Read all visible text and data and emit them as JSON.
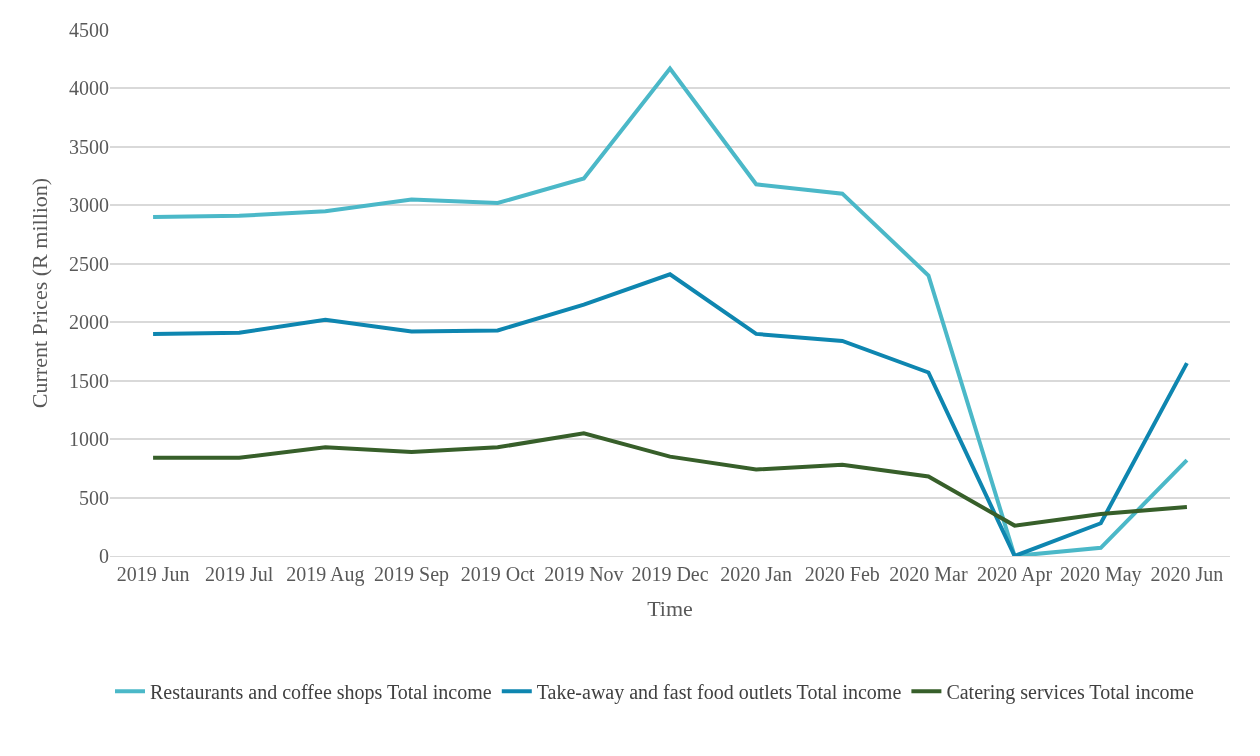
{
  "chart_data": {
    "type": "line",
    "xlabel": "Time",
    "ylabel": "Current Prices (R million)",
    "categories": [
      "2019 Jun",
      "2019 Jul",
      "2019 Aug",
      "2019 Sep",
      "2019 Oct",
      "2019 Nov",
      "2019 Dec",
      "2020 Jan",
      "2020 Feb",
      "2020 Mar",
      "2020 Apr",
      "2020 May",
      "2020 Jun"
    ],
    "series": [
      {
        "name": "Restaurants and coffee shops Total income",
        "color": "#4bb8c8",
        "values": [
          2900,
          2910,
          2950,
          3050,
          3020,
          3230,
          4170,
          3180,
          3100,
          2400,
          0,
          70,
          820
        ]
      },
      {
        "name": "Take-away and fast food outlets Total income",
        "color": "#0e86b0",
        "values": [
          1900,
          1910,
          2020,
          1920,
          1930,
          2150,
          2410,
          1900,
          1840,
          1570,
          0,
          280,
          1650
        ]
      },
      {
        "name": "Catering services Total income",
        "color": "#375f2a",
        "values": [
          840,
          840,
          930,
          890,
          930,
          1050,
          850,
          740,
          780,
          680,
          260,
          360,
          420
        ]
      }
    ],
    "ylim": [
      0,
      4500
    ],
    "yticks": [
      0,
      500,
      1000,
      1500,
      2000,
      2500,
      3000,
      3500,
      4000,
      4500
    ],
    "grid": "y",
    "legend": "bottom",
    "marker": "none",
    "line_style": "solid"
  }
}
